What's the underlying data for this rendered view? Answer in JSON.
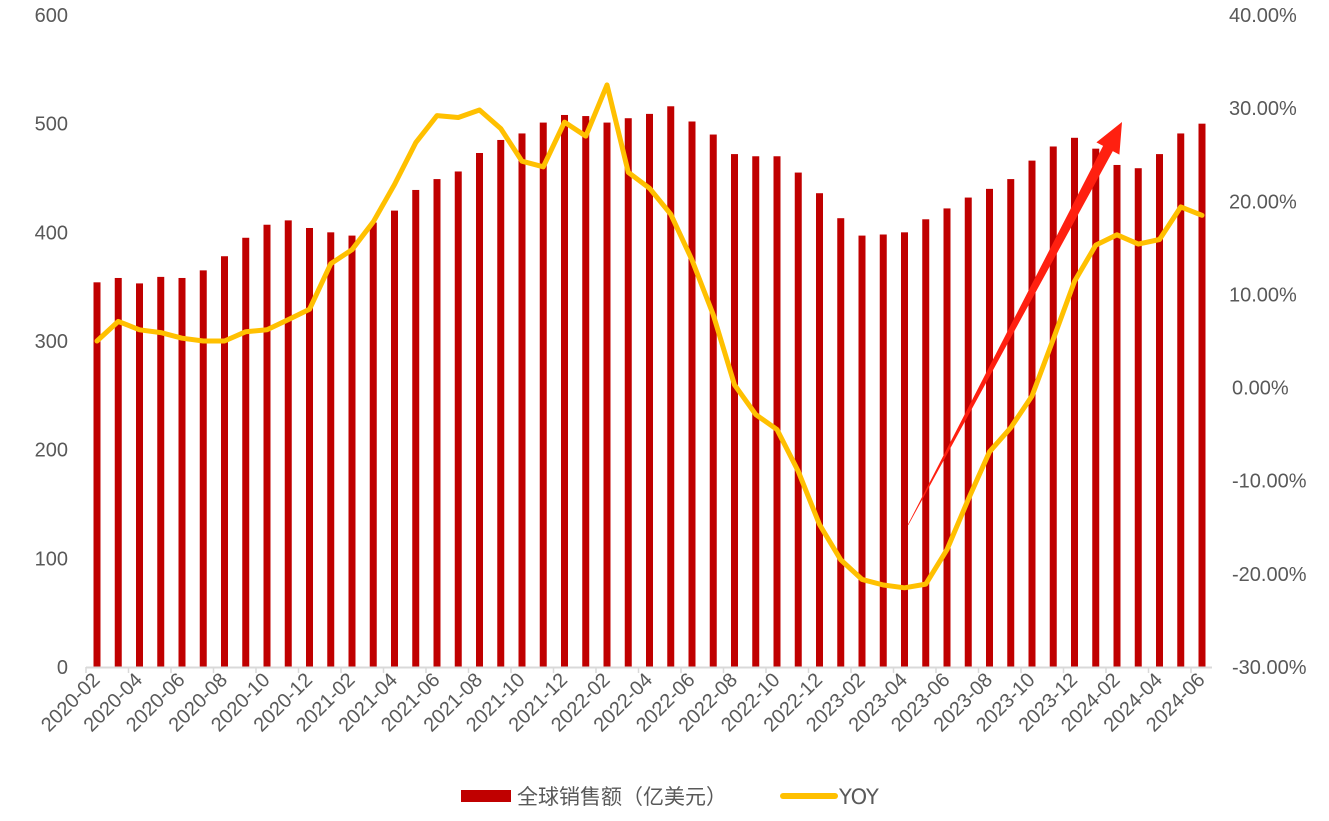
{
  "chart_data": {
    "type": "bar+line",
    "title": "",
    "xlabel": "",
    "ylabel": "",
    "y2label": "",
    "ylim": [
      0,
      600
    ],
    "y2lim": [
      -0.3,
      0.4
    ],
    "yticks": [
      "0",
      "100",
      "200",
      "300",
      "400",
      "500",
      "600"
    ],
    "y2ticks": [
      "-30.00%",
      "-20.00%",
      "-10.00%",
      "0.00%",
      "10.00%",
      "20.00%",
      "30.00%",
      "40.00%"
    ],
    "grid": false,
    "legend_position": "bottom",
    "categories": [
      "2020-02",
      "2020-03",
      "2020-04",
      "2020-05",
      "2020-06",
      "2020-07",
      "2020-08",
      "2020-09",
      "2020-10",
      "2020-11",
      "2020-12",
      "2021-01",
      "2021-02",
      "2021-03",
      "2021-04",
      "2021-05",
      "2021-06",
      "2021-07",
      "2021-08",
      "2021-09",
      "2021-10",
      "2021-11",
      "2021-12",
      "2022-01",
      "2022-02",
      "2022-03",
      "2022-04",
      "2022-05",
      "2022-06",
      "2022-07",
      "2022-08",
      "2022-09",
      "2022-10",
      "2022-11",
      "2022-12",
      "2023-01",
      "2023-02",
      "2023-03",
      "2023-04",
      "2023-05",
      "2023-06",
      "2023-07",
      "2023-08",
      "2023-09",
      "2023-10",
      "2023-11",
      "2023-12",
      "2024-01",
      "2024-02",
      "2024-03",
      "2024-04",
      "2024-05",
      "2024-06"
    ],
    "tick_labels_shown_every": 2,
    "series": [
      {
        "name": "全球销售额（亿美元）",
        "type": "bar",
        "axis": "left",
        "color": "#C00000",
        "values": [
          354,
          358,
          353,
          359,
          358,
          365,
          378,
          395,
          407,
          411,
          404,
          400,
          397,
          409,
          420,
          439,
          449,
          456,
          473,
          485,
          491,
          501,
          508,
          507,
          501,
          505,
          509,
          516,
          502,
          490,
          472,
          470,
          470,
          455,
          436,
          413,
          397,
          398,
          400,
          412,
          422,
          432,
          440,
          449,
          466,
          479,
          487,
          477,
          462,
          459,
          472,
          491,
          500
        ]
      },
      {
        "name": "YOY",
        "type": "line",
        "axis": "right",
        "color": "#FFC000",
        "values": [
          5.0,
          7.1,
          6.2,
          5.9,
          5.3,
          5.0,
          5.0,
          6.0,
          6.2,
          7.3,
          8.4,
          13.3,
          14.8,
          17.8,
          21.8,
          26.3,
          29.2,
          29.0,
          29.8,
          27.8,
          24.3,
          23.7,
          28.5,
          27.0,
          32.5,
          23.1,
          21.4,
          18.6,
          13.7,
          7.8,
          0.3,
          -2.9,
          -4.5,
          -9.0,
          -14.7,
          -18.5,
          -20.6,
          -21.2,
          -21.5,
          -21.1,
          -17.4,
          -12.0,
          -6.9,
          -4.3,
          -0.9,
          5.2,
          11.4,
          15.3,
          16.4,
          15.4,
          15.9,
          19.4,
          18.5
        ],
        "unit": "%"
      }
    ],
    "annotations": [
      {
        "type": "arrow",
        "color": "#FF2010",
        "from_category": "2023-04",
        "to_category": "2024-02",
        "direction": "up-right",
        "meaning": "upward trend"
      }
    ]
  },
  "legend": {
    "items": [
      {
        "label": "全球销售额（亿美元）",
        "color": "#C00000",
        "shape": "rect"
      },
      {
        "label": "YOY",
        "color": "#FFC000",
        "shape": "line"
      }
    ]
  },
  "colors": {
    "axis_text": "#595959",
    "axis_line": "#D9D9D9",
    "arrow": "#FF2010"
  }
}
